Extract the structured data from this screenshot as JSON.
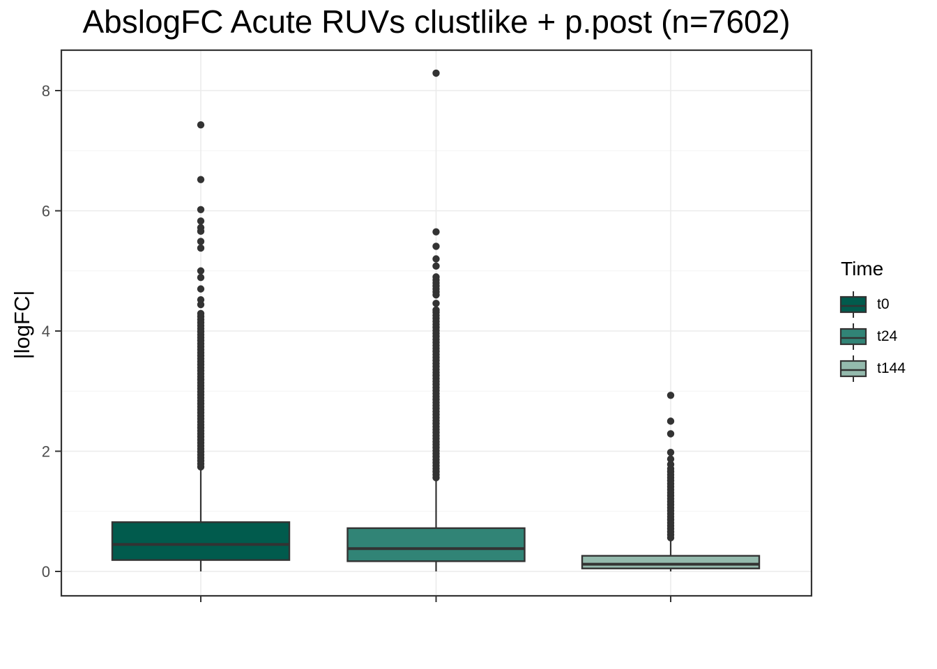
{
  "chart_data": {
    "type": "boxplot",
    "title": "AbslogFC Acute RUVs clustlike + p.post (n=7602)",
    "xlabel": "",
    "ylabel": "|logFC|",
    "ylim": [
      -0.42,
      8.67
    ],
    "yticks": [
      0,
      2,
      4,
      6,
      8
    ],
    "yminor_ticks": [
      1,
      3,
      5,
      7
    ],
    "x_tick_labels_shown": false,
    "categories": [
      "t0",
      "t24",
      "t144"
    ],
    "grid": "on",
    "legend": {
      "title": "Time",
      "position": "right"
    },
    "colors": {
      "outline": "#333333",
      "grid_major": "#EBEBEB",
      "grid_minor": "#F3F3F3",
      "tick_label": "#4D4D4D",
      "panel_border": "#333333",
      "outlier": "#333333"
    },
    "series": [
      {
        "name": "t0",
        "fill": "#015B4D",
        "stats": {
          "whisker_low": 0.0,
          "q1": 0.19,
          "median": 0.45,
          "q3": 0.82,
          "whisker_high": 1.73
        },
        "dense_outlier_ranges": [
          [
            1.74,
            4.33
          ]
        ],
        "outliers": [
          4.44,
          4.52,
          4.7,
          4.89,
          5.0,
          5.38,
          5.49,
          5.66,
          5.72,
          5.83,
          6.02,
          6.52,
          7.43
        ]
      },
      {
        "name": "t24",
        "fill": "#318476",
        "stats": {
          "whisker_low": 0.0,
          "q1": 0.17,
          "median": 0.38,
          "q3": 0.72,
          "whisker_high": 1.55
        },
        "dense_outlier_ranges": [
          [
            1.56,
            4.31
          ],
          [
            4.6,
            4.91
          ]
        ],
        "outliers": [
          4.35,
          4.46,
          5.08,
          5.2,
          5.41,
          5.65,
          8.29
        ]
      },
      {
        "name": "t144",
        "fill": "#94BAAD",
        "stats": {
          "whisker_low": 0.0,
          "q1": 0.05,
          "median": 0.12,
          "q3": 0.26,
          "whisker_high": 0.53
        },
        "dense_outlier_ranges": [
          [
            0.56,
            1.71
          ]
        ],
        "outliers": [
          1.78,
          1.87,
          1.98,
          2.29,
          2.5,
          2.93
        ]
      }
    ]
  }
}
